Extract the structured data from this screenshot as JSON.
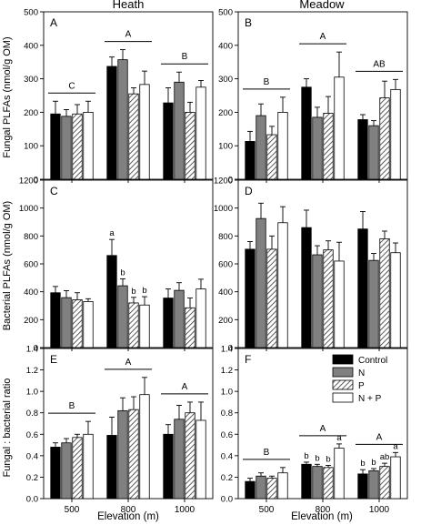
{
  "figure": {
    "column_titles": [
      "Heath",
      "Meadow"
    ],
    "row_ylabels": [
      "Fungal PLFAs (nmol/g OM)",
      "Bacterial PLFAs (nmol/g OM)",
      "Fungal : bacterial ratio"
    ],
    "xlabel": "Elevation (m)"
  },
  "chart_data": [
    {
      "panel": "A",
      "type": "bar",
      "categories": [
        "500",
        "800",
        "1000"
      ],
      "ylim": [
        0,
        500
      ],
      "yticks": [
        0,
        100,
        200,
        300,
        400,
        500
      ],
      "series": [
        {
          "name": "Control",
          "values": [
            195,
            337,
            228
          ],
          "errors": [
            38,
            28,
            45
          ]
        },
        {
          "name": "N",
          "values": [
            188,
            357,
            290
          ],
          "errors": [
            20,
            30,
            30
          ]
        },
        {
          "name": "P",
          "values": [
            195,
            255,
            200
          ],
          "errors": [
            28,
            18,
            30
          ]
        },
        {
          "name": "N + P",
          "values": [
            200,
            283,
            275
          ],
          "errors": [
            33,
            40,
            20
          ]
        }
      ],
      "groups": [
        {
          "label": "C",
          "categories": [
            "500"
          ]
        },
        {
          "label": "A",
          "categories": [
            "800"
          ]
        },
        {
          "label": "B",
          "categories": [
            "1000"
          ]
        }
      ],
      "bar_labels": []
    },
    {
      "panel": "B",
      "type": "bar",
      "categories": [
        "500",
        "800",
        "1000"
      ],
      "ylim": [
        0,
        500
      ],
      "yticks": [
        0,
        100,
        200,
        300,
        400,
        500
      ],
      "series": [
        {
          "name": "Control",
          "values": [
            113,
            275,
            178
          ],
          "errors": [
            30,
            25,
            15
          ]
        },
        {
          "name": "N",
          "values": [
            190,
            185,
            160
          ],
          "errors": [
            35,
            30,
            15
          ]
        },
        {
          "name": "P",
          "values": [
            133,
            197,
            243
          ],
          "errors": [
            25,
            50,
            50
          ]
        },
        {
          "name": "N + P",
          "values": [
            200,
            305,
            268
          ],
          "errors": [
            45,
            75,
            30
          ]
        }
      ],
      "groups": [
        {
          "label": "B",
          "categories": [
            "500"
          ]
        },
        {
          "label": "A",
          "categories": [
            "800"
          ]
        },
        {
          "label": "AB",
          "categories": [
            "1000"
          ]
        }
      ],
      "bar_labels": []
    },
    {
      "panel": "C",
      "type": "bar",
      "categories": [
        "500",
        "800",
        "1000"
      ],
      "ylim": [
        0,
        1200
      ],
      "yticks": [
        0,
        200,
        400,
        600,
        800,
        1000,
        1200
      ],
      "series": [
        {
          "name": "Control",
          "values": [
            393,
            660,
            355
          ],
          "errors": [
            45,
            115,
            65
          ]
        },
        {
          "name": "N",
          "values": [
            358,
            443,
            410
          ],
          "errors": [
            50,
            50,
            55
          ]
        },
        {
          "name": "P",
          "values": [
            343,
            320,
            285
          ],
          "errors": [
            50,
            40,
            70
          ]
        },
        {
          "name": "N + P",
          "values": [
            330,
            305,
            420
          ],
          "errors": [
            20,
            60,
            70
          ]
        }
      ],
      "groups": [],
      "bar_labels": [
        {
          "category": "800",
          "series": "Control",
          "text": "a"
        },
        {
          "category": "800",
          "series": "N",
          "text": "b"
        },
        {
          "category": "800",
          "series": "P",
          "text": "b"
        },
        {
          "category": "800",
          "series": "N + P",
          "text": "b"
        }
      ]
    },
    {
      "panel": "D",
      "type": "bar",
      "categories": [
        "500",
        "800",
        "1000"
      ],
      "ylim": [
        0,
        1200
      ],
      "yticks": [
        0,
        200,
        400,
        600,
        800,
        1000,
        1200
      ],
      "series": [
        {
          "name": "Control",
          "values": [
            705,
            860,
            850
          ],
          "errors": [
            55,
            125,
            125
          ]
        },
        {
          "name": "N",
          "values": [
            925,
            665,
            625
          ],
          "errors": [
            110,
            65,
            50
          ]
        },
        {
          "name": "P",
          "values": [
            705,
            700,
            780
          ],
          "errors": [
            95,
            65,
            55
          ]
        },
        {
          "name": "N + P",
          "values": [
            895,
            620,
            680
          ],
          "errors": [
            115,
            135,
            70
          ]
        }
      ],
      "groups": [],
      "bar_labels": []
    },
    {
      "panel": "E",
      "type": "bar",
      "categories": [
        "500",
        "800",
        "1000"
      ],
      "ylim": [
        0,
        1.4
      ],
      "yticks": [
        0,
        0.2,
        0.4,
        0.6,
        0.8,
        1.0,
        1.2,
        1.4
      ],
      "series": [
        {
          "name": "Control",
          "values": [
            0.48,
            0.59,
            0.6
          ],
          "errors": [
            0.04,
            0.17,
            0.09
          ]
        },
        {
          "name": "N",
          "values": [
            0.52,
            0.82,
            0.74
          ],
          "errors": [
            0.04,
            0.12,
            0.13
          ]
        },
        {
          "name": "P",
          "values": [
            0.57,
            0.83,
            0.8
          ],
          "errors": [
            0.03,
            0.12,
            0.1
          ]
        },
        {
          "name": "N + P",
          "values": [
            0.6,
            0.97,
            0.73
          ],
          "errors": [
            0.12,
            0.16,
            0.17
          ]
        }
      ],
      "groups": [
        {
          "label": "B",
          "categories": [
            "500"
          ]
        },
        {
          "label": "A",
          "categories": [
            "800"
          ]
        },
        {
          "label": "A",
          "categories": [
            "1000"
          ]
        }
      ],
      "bar_labels": []
    },
    {
      "panel": "F",
      "type": "bar",
      "categories": [
        "500",
        "800",
        "1000"
      ],
      "ylim": [
        0,
        1.4
      ],
      "yticks": [
        0,
        0.2,
        0.4,
        0.6,
        0.8,
        1.0,
        1.2,
        1.4
      ],
      "series": [
        {
          "name": "Control",
          "values": [
            0.16,
            0.32,
            0.23
          ],
          "errors": [
            0.03,
            0.02,
            0.04
          ]
        },
        {
          "name": "N",
          "values": [
            0.21,
            0.3,
            0.26
          ],
          "errors": [
            0.03,
            0.02,
            0.02
          ]
        },
        {
          "name": "P",
          "values": [
            0.19,
            0.29,
            0.3
          ],
          "errors": [
            0.02,
            0.02,
            0.03
          ]
        },
        {
          "name": "N + P",
          "values": [
            0.24,
            0.47,
            0.39
          ],
          "errors": [
            0.05,
            0.04,
            0.04
          ]
        }
      ],
      "groups": [
        {
          "label": "B",
          "categories": [
            "500"
          ]
        },
        {
          "label": "A",
          "categories": [
            "800"
          ]
        },
        {
          "label": "A",
          "categories": [
            "1000"
          ]
        }
      ],
      "bar_labels": [
        {
          "category": "800",
          "series": "Control",
          "text": "b"
        },
        {
          "category": "800",
          "series": "N",
          "text": "b"
        },
        {
          "category": "800",
          "series": "P",
          "text": "b"
        },
        {
          "category": "800",
          "series": "N + P",
          "text": "a"
        },
        {
          "category": "1000",
          "series": "Control",
          "text": "b"
        },
        {
          "category": "1000",
          "series": "N",
          "text": "b"
        },
        {
          "category": "1000",
          "series": "P",
          "text": "ab"
        },
        {
          "category": "1000",
          "series": "N + P",
          "text": "a"
        }
      ]
    }
  ],
  "legend": {
    "panel": "F",
    "entries": [
      {
        "name": "Control",
        "pattern": "solid-black"
      },
      {
        "name": "N",
        "pattern": "solid-gray"
      },
      {
        "name": "P",
        "pattern": "hatched"
      },
      {
        "name": "N + P",
        "pattern": "white"
      }
    ]
  }
}
